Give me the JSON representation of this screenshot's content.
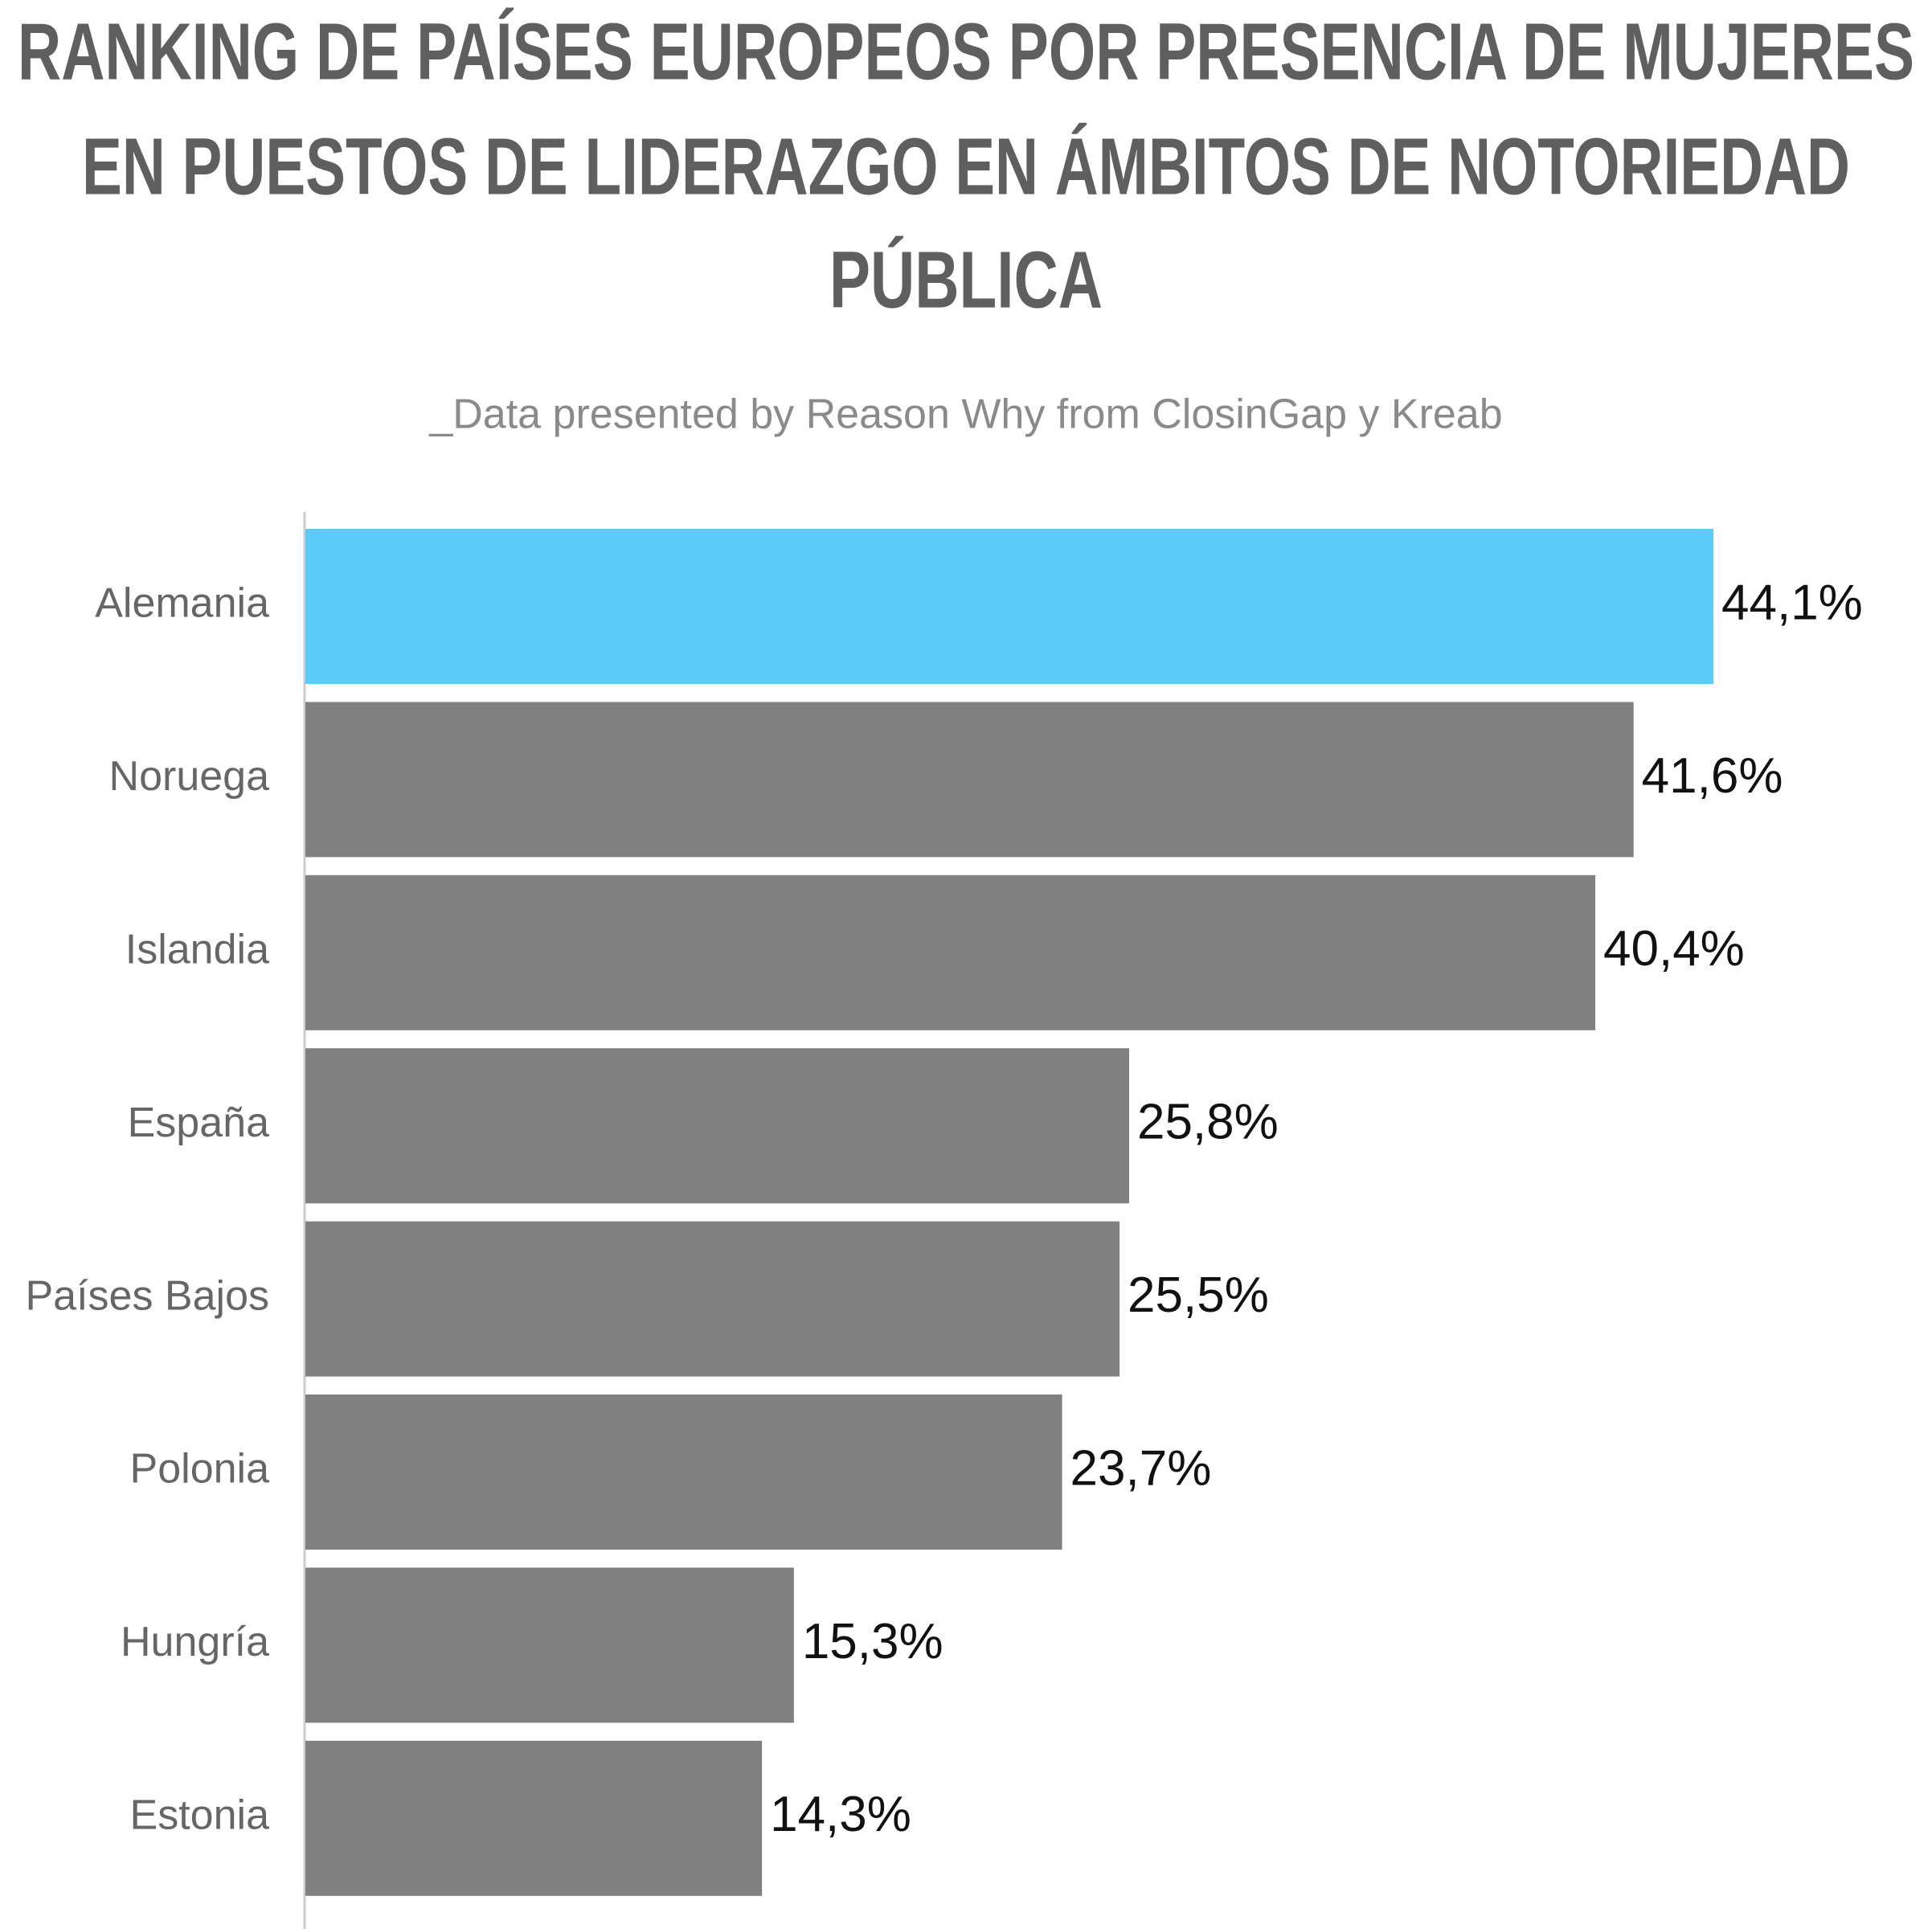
{
  "chart_data": {
    "type": "barh",
    "title": [
      "RANKING DE PAÍSES EUROPEOS POR PRESENCIA DE MUJERES",
      "EN PUESTOS DE LIDERAZGO EN ÁMBITOS DE NOTORIEDAD",
      "PÚBLICA"
    ],
    "subtitle": "_Data presented by Reason Why from ClosinGap y Kreab",
    "categories": [
      "Alemania",
      "Noruega",
      "Islandia",
      "España",
      "Países Bajos",
      "Polonia",
      "Hungría",
      "Estonia"
    ],
    "values": [
      44.1,
      41.6,
      40.4,
      25.8,
      25.5,
      23.7,
      15.3,
      14.3
    ],
    "value_labels": [
      "44,1%",
      "41,6%",
      "40,4%",
      "25,8%",
      "25,5%",
      "23,7%",
      "15,3%",
      "14,3%"
    ],
    "colors": [
      "#5bcbfc",
      "#808080",
      "#808080",
      "#808080",
      "#808080",
      "#808080",
      "#808080",
      "#808080"
    ]
  }
}
